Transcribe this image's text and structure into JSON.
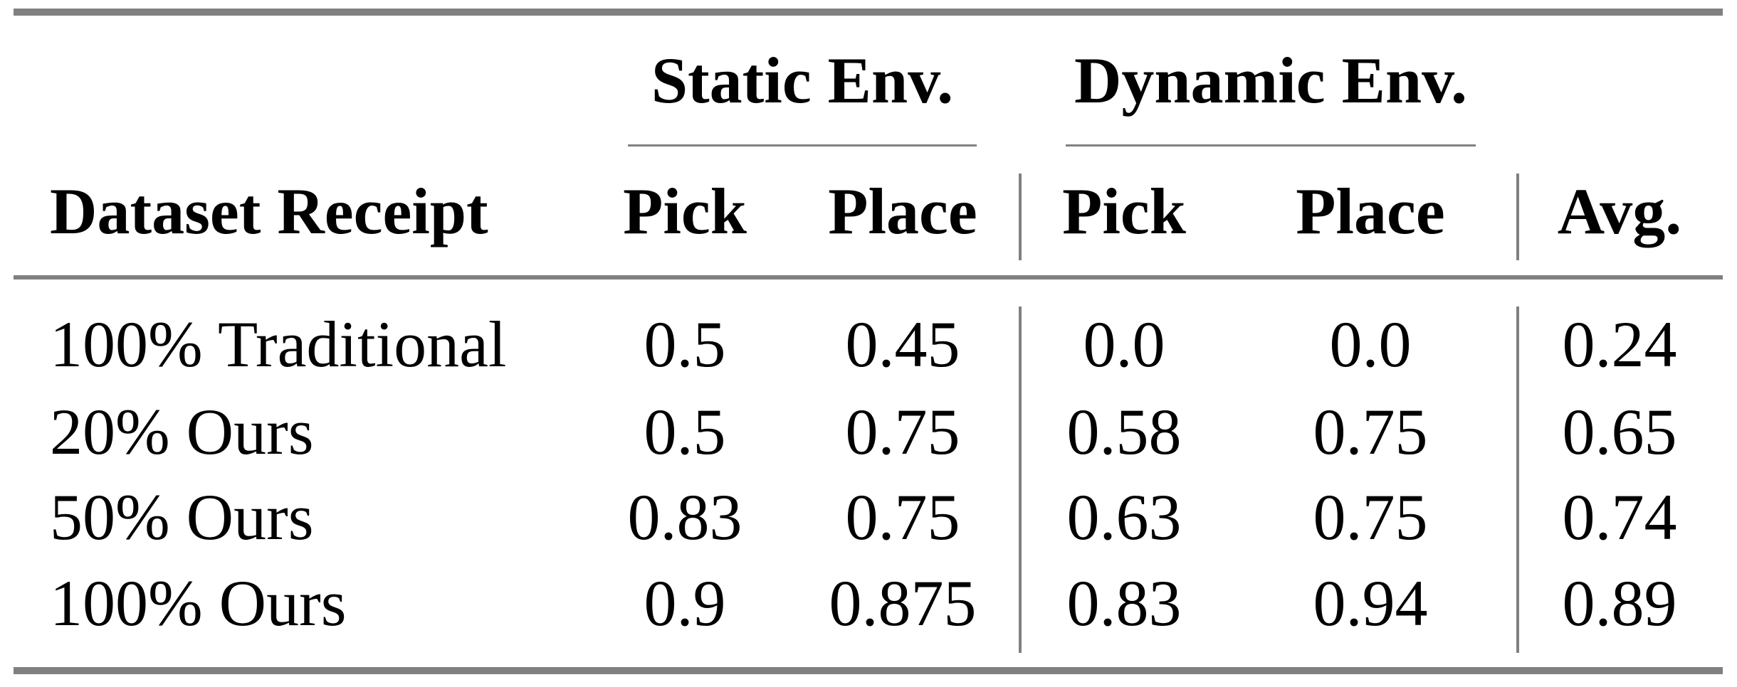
{
  "table": {
    "group_headers": [
      "Static Env.",
      "Dynamic Env."
    ],
    "columns": [
      "Dataset Receipt",
      "Pick",
      "Place",
      "Pick",
      "Place",
      "Avg."
    ],
    "rows": [
      [
        "100% Traditional",
        "0.5",
        "0.45",
        "0.0",
        "0.0",
        "0.24"
      ],
      [
        "20% Ours",
        "0.5",
        "0.75",
        "0.58",
        "0.75",
        "0.65"
      ],
      [
        "50% Ours",
        "0.83",
        "0.75",
        "0.63",
        "0.75",
        "0.74"
      ],
      [
        "100% Ours",
        "0.9",
        "0.875",
        "0.83",
        "0.94",
        "0.89"
      ]
    ]
  }
}
